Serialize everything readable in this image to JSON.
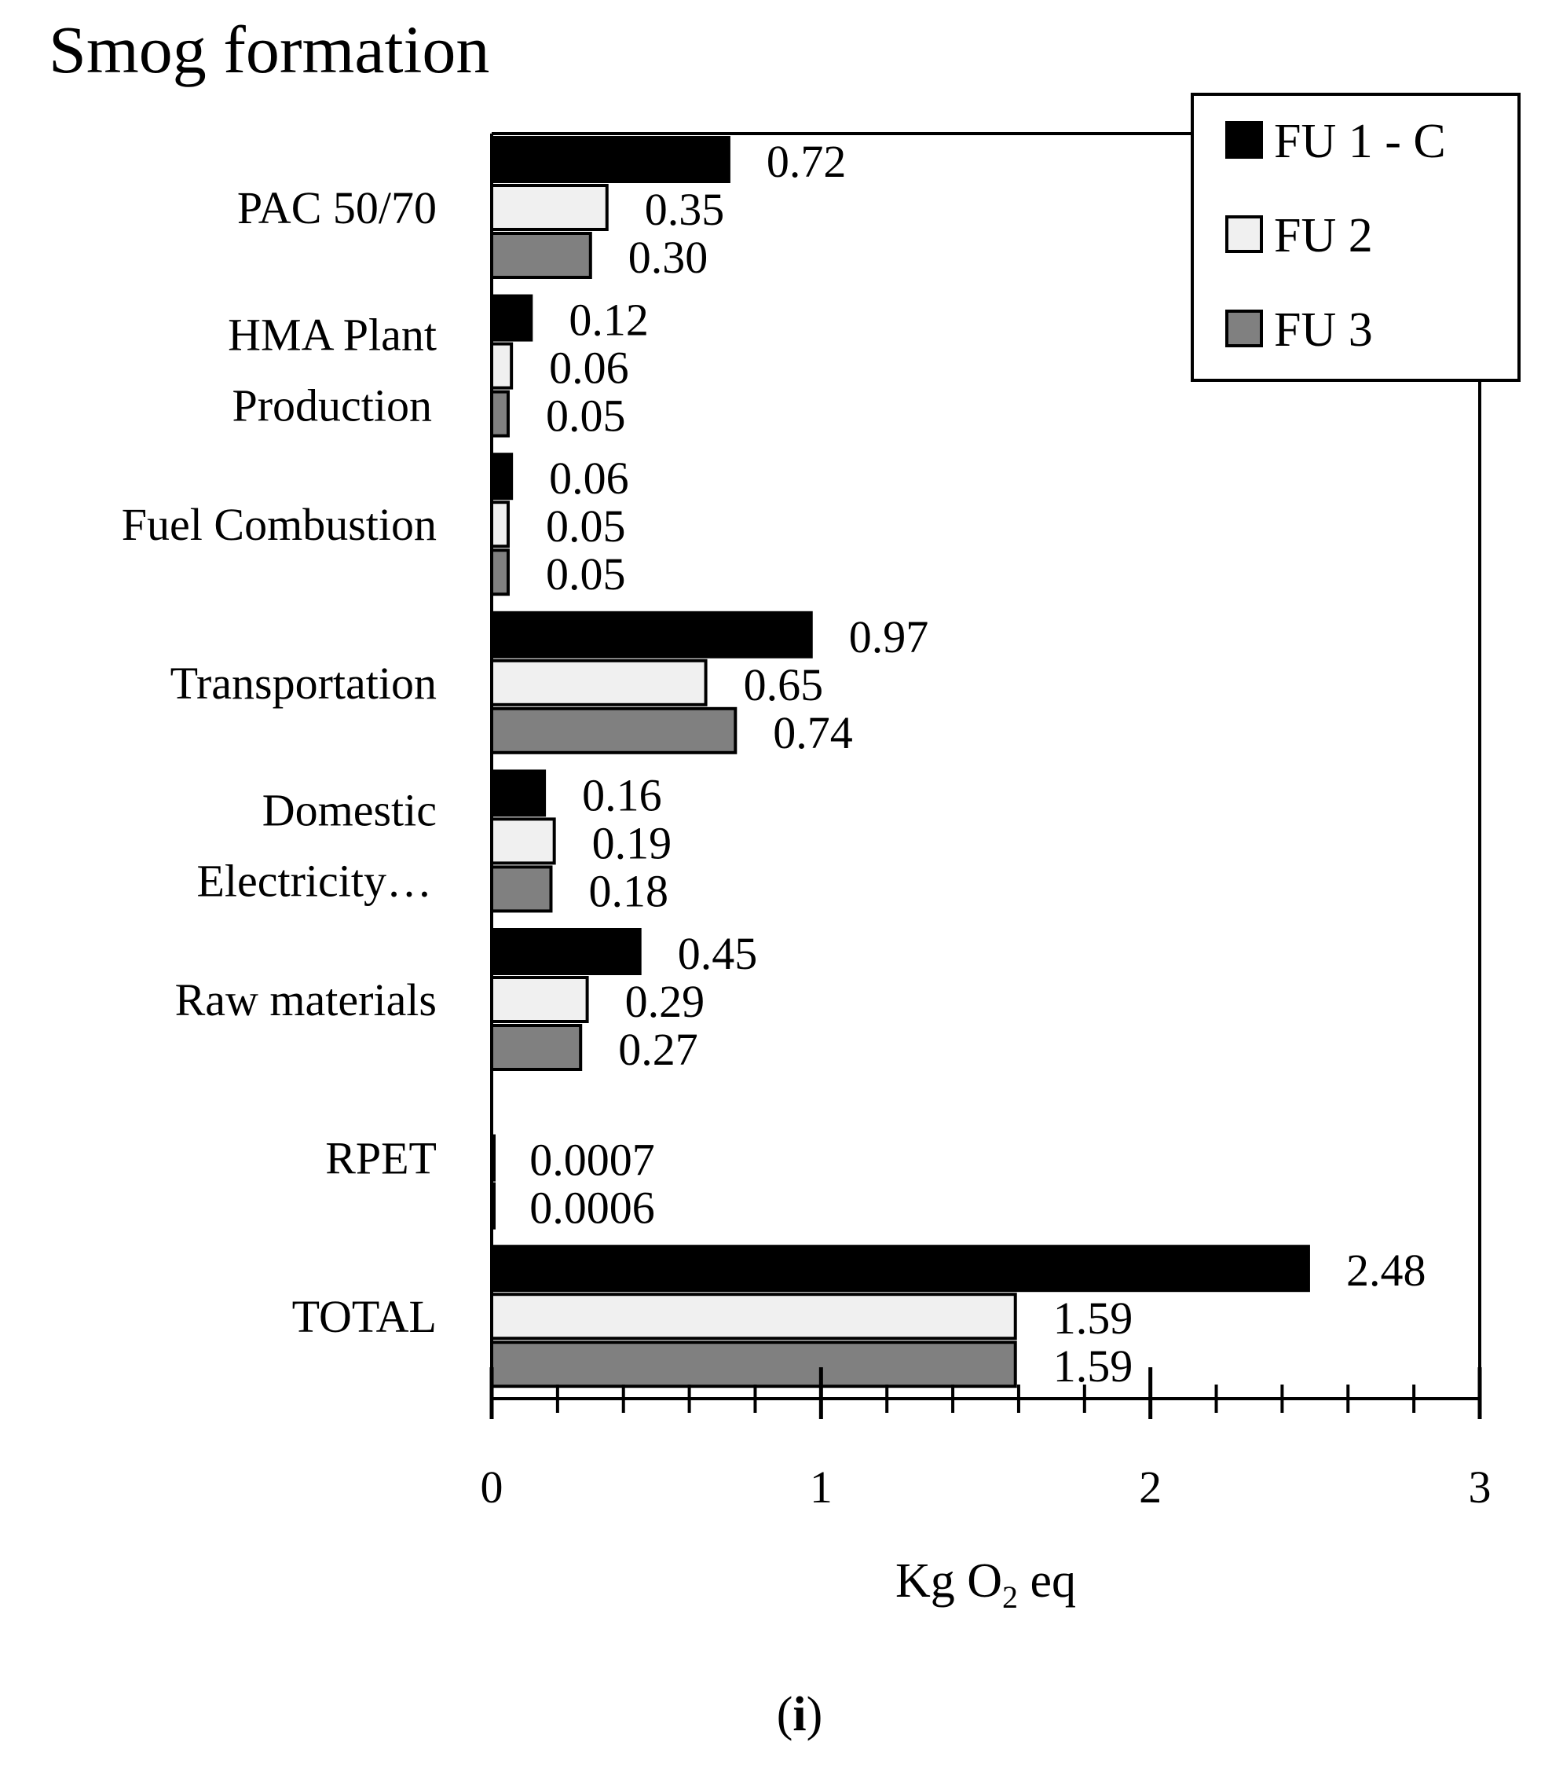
{
  "chart_data": {
    "type": "bar",
    "orientation": "horizontal",
    "title": "Smog formation",
    "xlabel": {
      "prefix": "Kg O",
      "subscript": "2",
      "suffix": " eq"
    },
    "ylabel": "",
    "xlim": [
      0,
      3
    ],
    "x_ticks": [
      "0",
      "1",
      "2",
      "3"
    ],
    "grid": false,
    "legend_position": "top-right",
    "panel_label": {
      "open": "(",
      "letter": "i",
      "close": ")"
    },
    "categories": [
      [
        "PAC 50/70"
      ],
      [
        "HMA Plant",
        "Production"
      ],
      [
        "Fuel Combustion"
      ],
      [
        "Transportation"
      ],
      [
        "Domestic",
        "Electricity…"
      ],
      [
        "Raw materials"
      ],
      [
        "RPET"
      ],
      [
        "TOTAL"
      ]
    ],
    "series": [
      {
        "name": "FU 1 - C",
        "color": "#000000",
        "values": [
          0.72,
          0.12,
          0.06,
          0.97,
          0.16,
          0.45,
          null,
          2.48
        ],
        "labels": [
          "0.72",
          "0.12",
          "0.06",
          "0.97",
          "0.16",
          "0.45",
          "",
          "2.48"
        ]
      },
      {
        "name": "FU 2",
        "color": "#f0f0f0",
        "values": [
          0.35,
          0.06,
          0.05,
          0.65,
          0.19,
          0.29,
          0.0007,
          1.59
        ],
        "labels": [
          "0.35",
          "0.06",
          "0.05",
          "0.65",
          "0.19",
          "0.29",
          "0.0007",
          "1.59"
        ]
      },
      {
        "name": "FU 3",
        "color": "#808080",
        "values": [
          0.3,
          0.05,
          0.05,
          0.74,
          0.18,
          0.27,
          0.0006,
          1.59
        ],
        "labels": [
          "0.30",
          "0.05",
          "0.05",
          "0.74",
          "0.18",
          "0.27",
          "0.0006",
          "1.59"
        ]
      }
    ]
  }
}
